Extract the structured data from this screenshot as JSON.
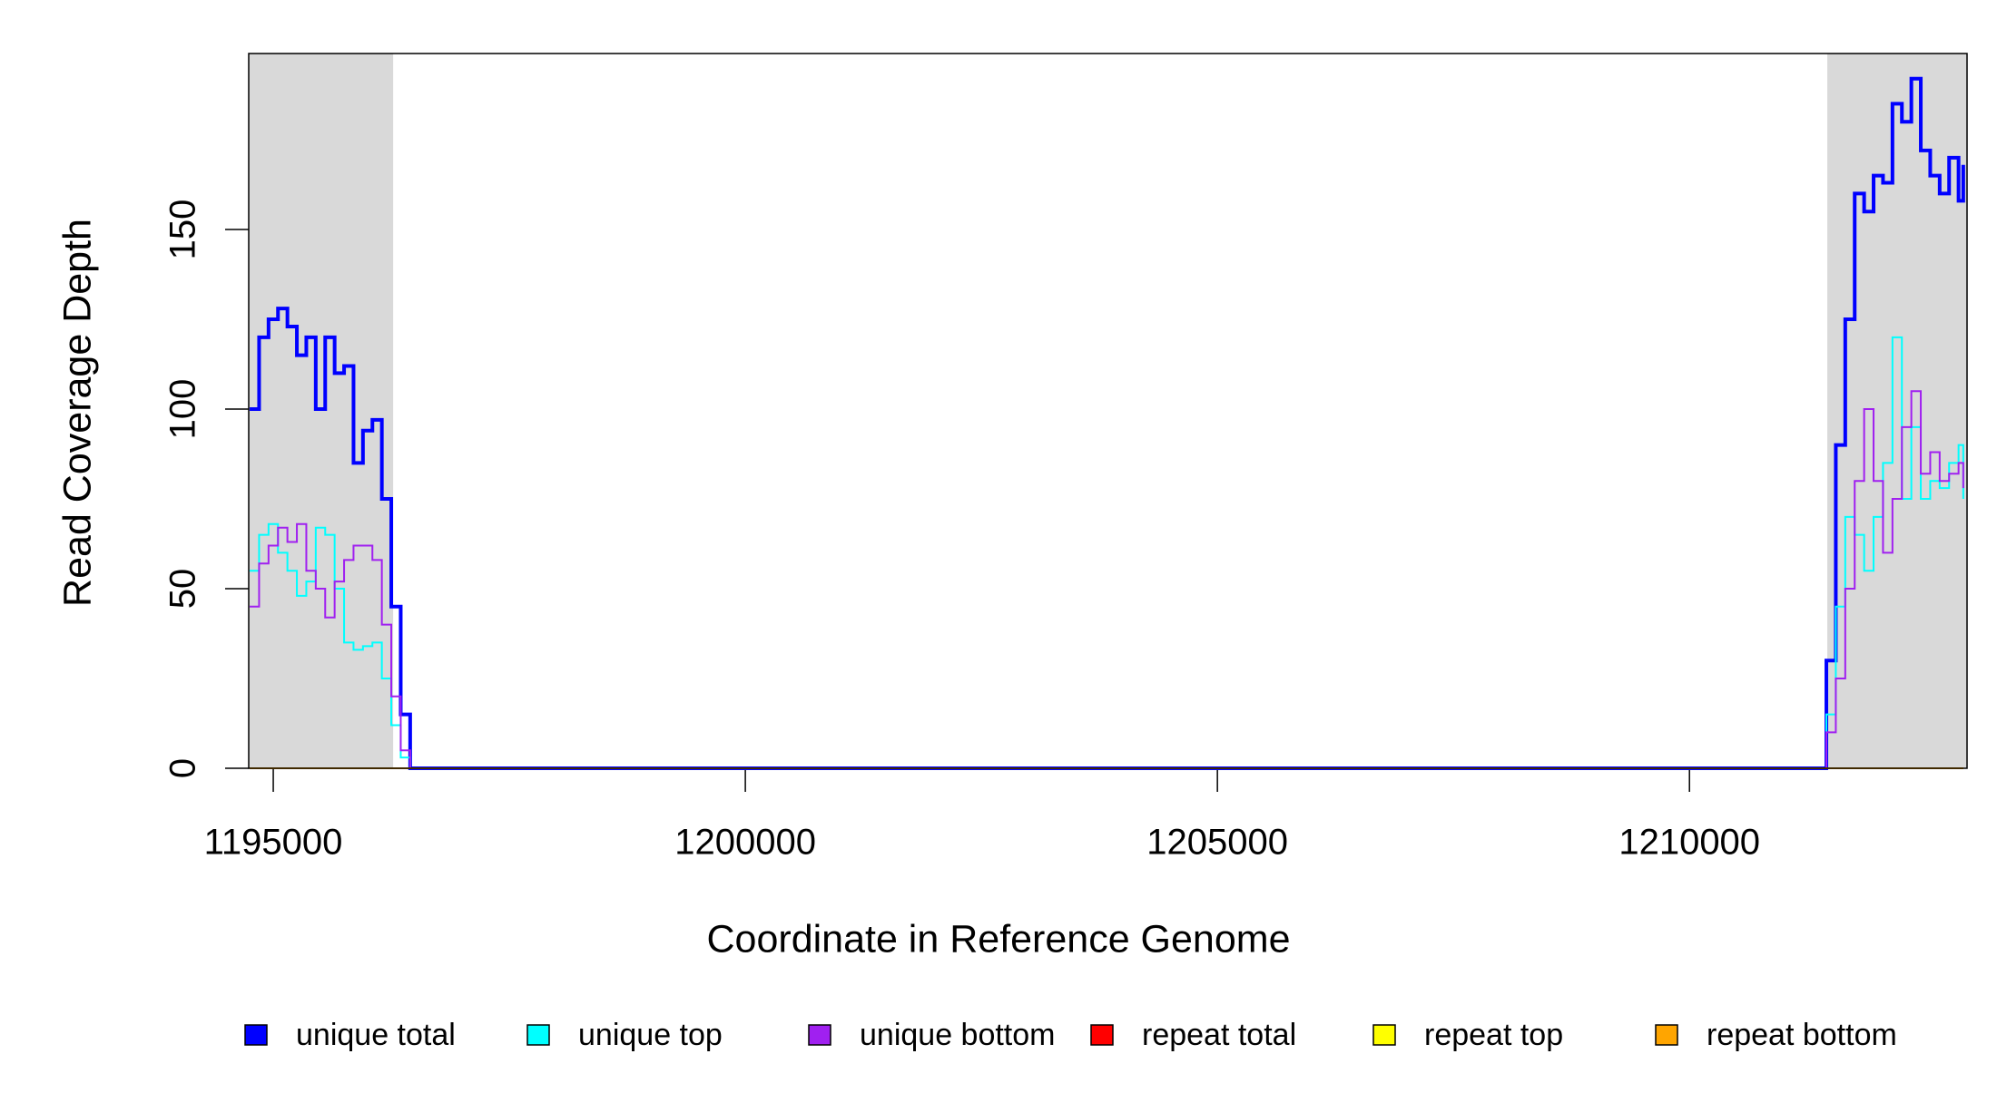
{
  "chart_data": {
    "type": "step",
    "xlabel": "Coordinate in Reference Genome",
    "ylabel": "Read Coverage Depth",
    "x": [
      1194750,
      1194850,
      1194950,
      1195050,
      1195150,
      1195250,
      1195350,
      1195450,
      1195550,
      1195650,
      1195750,
      1195850,
      1195950,
      1196050,
      1196150,
      1196250,
      1196350,
      1196450,
      1197000,
      1211400,
      1211450,
      1211550,
      1211650,
      1211750,
      1211850,
      1211950,
      1212050,
      1212150,
      1212250,
      1212350,
      1212450,
      1212550,
      1212650,
      1212750,
      1212850,
      1212900
    ],
    "series": [
      {
        "name": "unique total",
        "color": "#0000ff",
        "values": [
          100,
          120,
          125,
          128,
          123,
          115,
          120,
          100,
          120,
          110,
          112,
          85,
          94,
          97,
          75,
          45,
          15,
          0,
          0,
          0,
          30,
          90,
          125,
          160,
          155,
          165,
          163,
          185,
          180,
          192,
          172,
          165,
          160,
          170,
          158,
          168
        ]
      },
      {
        "name": "unique top",
        "color": "#00ffff",
        "values": [
          55,
          65,
          68,
          60,
          55,
          48,
          52,
          67,
          65,
          50,
          35,
          33,
          34,
          35,
          25,
          12,
          3,
          0,
          0,
          0,
          15,
          45,
          70,
          65,
          55,
          70,
          85,
          120,
          75,
          95,
          75,
          80,
          78,
          85,
          90,
          75
        ]
      },
      {
        "name": "unique bottom",
        "color": "#a020f0",
        "values": [
          45,
          57,
          62,
          67,
          63,
          68,
          55,
          50,
          42,
          52,
          58,
          62,
          62,
          58,
          40,
          20,
          5,
          0,
          0,
          0,
          10,
          25,
          50,
          80,
          100,
          80,
          60,
          75,
          95,
          105,
          82,
          88,
          80,
          82,
          85,
          78
        ]
      },
      {
        "name": "repeat total",
        "color": "#ff0000",
        "values": [
          0,
          0,
          0,
          0,
          0,
          0,
          0,
          0,
          0,
          0,
          0,
          0,
          0,
          0,
          0,
          0,
          0,
          0,
          0,
          0,
          0,
          0,
          0,
          0,
          0,
          0,
          0,
          0,
          0,
          0,
          0,
          0,
          0,
          0,
          0,
          0
        ]
      },
      {
        "name": "repeat top",
        "color": "#ffff00",
        "values": [
          0,
          0,
          0,
          0,
          0,
          0,
          0,
          0,
          0,
          0,
          0,
          0,
          0,
          0,
          0,
          0,
          0,
          0,
          0,
          0,
          0,
          0,
          0,
          0,
          0,
          0,
          0,
          0,
          0,
          0,
          0,
          0,
          0,
          0,
          0,
          0
        ]
      },
      {
        "name": "repeat bottom",
        "color": "#ffa500",
        "values": [
          0,
          0,
          0,
          0,
          0,
          0,
          0,
          0,
          0,
          0,
          0,
          0,
          0,
          0,
          0,
          0,
          0,
          0,
          0,
          0,
          0,
          0,
          0,
          0,
          0,
          0,
          0,
          0,
          0,
          0,
          0,
          0,
          0,
          0,
          0,
          0
        ]
      }
    ],
    "shaded_regions": [
      [
        1194740,
        1196270
      ],
      [
        1211460,
        1212940
      ]
    ],
    "shade_color": "#d9d9d9",
    "xlim": [
      1194740,
      1212940
    ],
    "ylim": [
      0,
      199
    ],
    "xticks": [
      1195000,
      1200000,
      1205000,
      1210000
    ],
    "yticks": [
      0,
      50,
      100,
      150
    ],
    "legend": "bottom"
  }
}
